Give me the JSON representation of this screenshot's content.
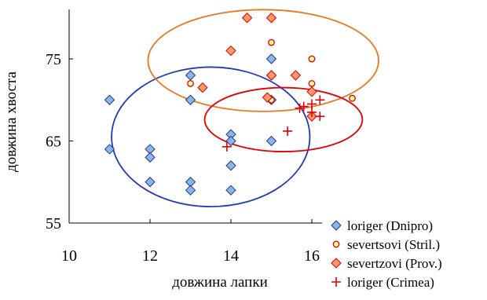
{
  "chart_data": {
    "type": "scatter",
    "title": "",
    "xlabel": "довжина лапки",
    "ylabel": "довжина хвоста",
    "xlim": [
      10,
      16
    ],
    "ylim": [
      55,
      80
    ],
    "x_ticks": [
      10,
      12,
      14,
      16
    ],
    "y_ticks": [
      55,
      65,
      75
    ],
    "x_tick_labels": [
      "10",
      "12",
      "14",
      "16"
    ],
    "y_tick_labels": [
      "55",
      "65",
      "75"
    ],
    "grid": false,
    "legend_position": "bottom-right",
    "series": [
      {
        "name": "loriger (Dnipro)",
        "marker": "diamond",
        "fill": "#8DB4E2",
        "stroke": "#1F3A93",
        "points": [
          [
            11,
            70
          ],
          [
            11,
            64
          ],
          [
            12,
            64
          ],
          [
            12,
            63
          ],
          [
            12,
            60
          ],
          [
            13,
            73
          ],
          [
            13,
            70
          ],
          [
            13,
            60
          ],
          [
            13,
            59
          ],
          [
            14,
            65.8
          ],
          [
            14,
            65
          ],
          [
            14,
            62
          ],
          [
            14,
            59
          ],
          [
            15,
            75
          ],
          [
            15,
            73
          ],
          [
            15,
            70
          ],
          [
            15,
            65
          ]
        ]
      },
      {
        "name": "severtsovi (Stril.)",
        "marker": "circle",
        "fill": "#FFFF99",
        "stroke": "#E00000",
        "points": [
          [
            13,
            72
          ],
          [
            14,
            76
          ],
          [
            14.4,
            80
          ],
          [
            15,
            80
          ],
          [
            15,
            77
          ],
          [
            15,
            73
          ],
          [
            15,
            70
          ],
          [
            15.6,
            73
          ],
          [
            16,
            75
          ],
          [
            16,
            72
          ],
          [
            16,
            71
          ],
          [
            16,
            68
          ],
          [
            17,
            70.2
          ]
        ]
      },
      {
        "name": "severtzovi (Prov.)",
        "marker": "diamond",
        "fill": "#FF9966",
        "stroke": "#E00000",
        "points": [
          [
            13.3,
            71.5
          ],
          [
            14,
            76
          ],
          [
            14.4,
            80
          ],
          [
            15,
            80
          ],
          [
            15,
            73
          ],
          [
            14.9,
            70.3
          ],
          [
            15.6,
            73
          ],
          [
            16,
            71
          ],
          [
            16,
            68
          ]
        ]
      },
      {
        "name": "loriger (Crimea)",
        "marker": "plus",
        "stroke": "#E00000",
        "points": [
          [
            13.9,
            64.3
          ],
          [
            15.4,
            66.2
          ],
          [
            15.7,
            69
          ],
          [
            15.8,
            69.2
          ],
          [
            16,
            69.5
          ],
          [
            16,
            68.5
          ],
          [
            16.2,
            70
          ],
          [
            16.2,
            68
          ]
        ]
      }
    ],
    "ellipses": [
      {
        "series": "loriger (Dnipro)",
        "color": "#1F3AB8",
        "cx": 13.5,
        "cy": 65.5,
        "rx": 2.45,
        "ry": 8.5
      },
      {
        "series": "severtsovi (Stril.)",
        "color": "#E87722",
        "cx": 14.8,
        "cy": 74.8,
        "rx": 2.85,
        "ry": 6.2
      },
      {
        "series": "loriger (Crimea)",
        "color": "#E00000",
        "cx": 15.3,
        "cy": 67.6,
        "rx": 1.95,
        "ry": 3.9
      }
    ]
  }
}
